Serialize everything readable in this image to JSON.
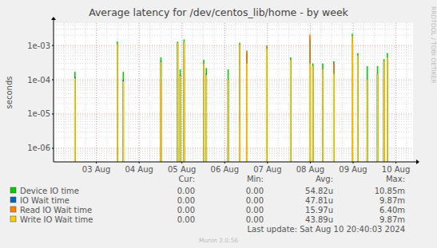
{
  "chart_data": {
    "type": "bar",
    "title": "Average latency for /dev/centos_lib/home - by week",
    "y_label": "seconds",
    "log": "y",
    "grid": true,
    "legend": "bottom",
    "x": [
      2.5,
      3.49,
      3.63,
      4.51,
      4.9,
      4.96,
      5.05,
      5.51,
      5.57,
      6.08,
      6.35,
      6.52,
      6.98,
      7.54,
      7.99,
      8.06,
      8.29,
      8.55,
      8.98,
      9.11,
      9.33,
      9.57,
      9.72,
      9.8
    ],
    "xlim": [
      2.0,
      10.4
    ],
    "xticks": [
      {
        "value": 3,
        "label": "03 Aug"
      },
      {
        "value": 4,
        "label": "04 Aug"
      },
      {
        "value": 5,
        "label": "05 Aug"
      },
      {
        "value": 6,
        "label": "06 Aug"
      },
      {
        "value": 7,
        "label": "07 Aug"
      },
      {
        "value": 8,
        "label": "08 Aug"
      },
      {
        "value": 9,
        "label": "09 Aug"
      },
      {
        "value": 10,
        "label": "10 Aug"
      }
    ],
    "ylim": [
      4e-07,
      0.0045
    ],
    "yticks": [
      {
        "value": 1e-06,
        "label": "1e-06"
      },
      {
        "value": 1e-05,
        "label": "1e-05"
      },
      {
        "value": 0.0001,
        "label": "1e-04"
      },
      {
        "value": 0.001,
        "label": "1e-03"
      }
    ],
    "stats_headers": [
      "Cur:",
      "Min:",
      "Avg:",
      "Max:"
    ],
    "series": [
      {
        "name": "Device IO time",
        "color": "#00cc00",
        "stats": [
          "0.00",
          "0.00",
          "54.82u",
          "10.85m"
        ],
        "values": [
          0.00017,
          0.0013,
          0.00017,
          0.00045,
          0.0013,
          0.0002,
          0.0015,
          0.00038,
          0.00022,
          0.0002,
          0.0012,
          0.0007,
          0.001,
          0.00045,
          0.0013,
          0.0003,
          0.0003,
          0.00035,
          0.0022,
          0.0006,
          0.00025,
          0.00025,
          0.0004,
          0.0006
        ]
      },
      {
        "name": "IO Wait time",
        "color": "#0066b3",
        "stats": [
          "0.00",
          "0.00",
          "47.81u",
          "9.87m"
        ],
        "values": [
          0.00012,
          0.0011,
          0.0001,
          0.00035,
          0.0012,
          0.00014,
          0.0013,
          0.0003,
          0.00015,
          0.0001,
          0.0011,
          0.0006,
          0.0009,
          0.00038,
          0.0016,
          0.00025,
          0.0002,
          0.0003,
          0.0019,
          0.0005,
          0.0001,
          0.00015,
          0.00035,
          0.00045
        ]
      },
      {
        "name": "Read IO Wait time",
        "color": "#ff8000",
        "stats": [
          "0.00",
          "0.00",
          "15.97u",
          "6.40m"
        ],
        "values": [
          3e-05,
          null,
          null,
          8e-05,
          null,
          null,
          0.0004,
          null,
          null,
          null,
          6e-06,
          0.0007,
          0.001,
          null,
          0.0021,
          null,
          null,
          0.0003,
          0.0012,
          null,
          null,
          null,
          0.0001,
          null
        ]
      },
      {
        "name": "Write IO Wait time",
        "color": "#ffcc00",
        "stats": [
          "0.00",
          "0.00",
          "43.89u",
          "9.87m"
        ],
        "values": [
          0.00011,
          0.0011,
          9e-05,
          0.00033,
          0.0012,
          0.00013,
          0.0013,
          0.0003,
          0.00014,
          0.0001,
          0.0011,
          0.0003,
          0.0008,
          0.00038,
          0.0003,
          0.00025,
          0.0002,
          0.00015,
          0.0019,
          0.0005,
          0.0001,
          0.00015,
          0.00035,
          0.00045
        ]
      }
    ],
    "footer": "Last update: Sat Aug 10 20:40:03 2024",
    "credit": "Munin 2.0.56",
    "watermark": "RRDTOOL / TOBI OETIKER"
  }
}
